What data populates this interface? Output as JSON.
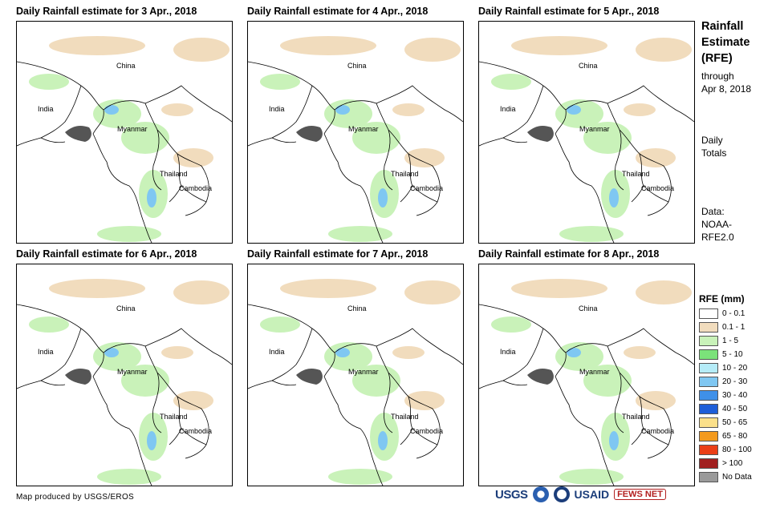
{
  "panels": [
    {
      "title": "Daily Rainfall estimate for 3 Apr., 2018"
    },
    {
      "title": "Daily Rainfall estimate for 4 Apr., 2018"
    },
    {
      "title": "Daily Rainfall estimate for 5 Apr., 2018"
    },
    {
      "title": "Daily Rainfall estimate for 6 Apr., 2018"
    },
    {
      "title": "Daily Rainfall estimate for 7 Apr., 2018"
    },
    {
      "title": "Daily Rainfall estimate for 8 Apr., 2018"
    }
  ],
  "places": {
    "china": "China",
    "india": "India",
    "myanmar": "Myanmar",
    "thailand": "Thailand",
    "cambodia": "Cambodia"
  },
  "sidebar": {
    "title_line1": "Rainfall",
    "title_line2": "Estimate",
    "title_line3": "(RFE)",
    "through": "through",
    "through_date": "Apr 8, 2018",
    "daily": "Daily",
    "totals": "Totals",
    "data_label": "Data:",
    "data_source_1": "NOAA-",
    "data_source_2": "RFE2.0"
  },
  "legend": {
    "title": "RFE (mm)",
    "items": [
      {
        "label": "0 - 0.1",
        "color": "#ffffff"
      },
      {
        "label": "0.1 - 1",
        "color": "#f1dcbd"
      },
      {
        "label": "1 - 5",
        "color": "#c9f2b9"
      },
      {
        "label": "5 - 10",
        "color": "#7be27a"
      },
      {
        "label": "10 - 20",
        "color": "#b5ecf8"
      },
      {
        "label": "20 - 30",
        "color": "#7fc7f2"
      },
      {
        "label": "30 - 40",
        "color": "#3f90e8"
      },
      {
        "label": "40 - 50",
        "color": "#1e5ed8"
      },
      {
        "label": "50 - 65",
        "color": "#fbe08a"
      },
      {
        "label": "65 - 80",
        "color": "#f39a1d"
      },
      {
        "label": "80 - 100",
        "color": "#ea3f17"
      },
      {
        "label": "> 100",
        "color": "#a12020"
      },
      {
        "label": "No Data",
        "color": "#9a9a9a"
      }
    ]
  },
  "credit": "Map produced by USGS/EROS",
  "logos": {
    "usgs": "USGS",
    "usaid": "USAID",
    "fews": "FEWS NET"
  }
}
